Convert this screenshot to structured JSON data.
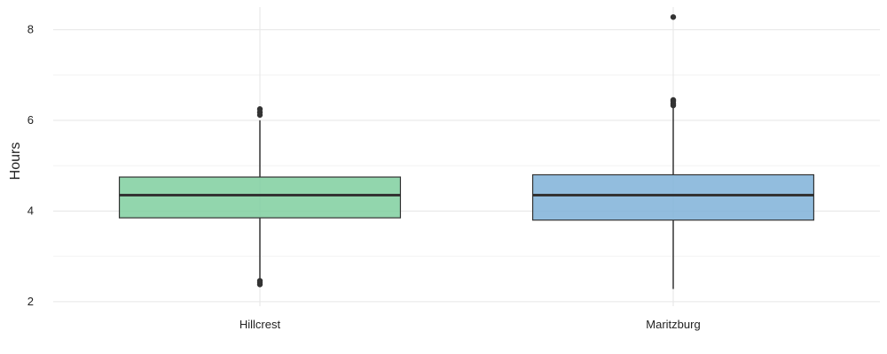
{
  "chart_data": {
    "type": "boxplot",
    "title": "",
    "xlabel": "",
    "ylabel": "Hours",
    "ylim": [
      1.9,
      8.5
    ],
    "yticks": [
      2,
      4,
      6,
      8
    ],
    "grid": true,
    "legend": "none",
    "categories": [
      "Hillcrest",
      "Maritzburg"
    ],
    "boxes": [
      {
        "name": "Hillcrest",
        "color": "#7fcf9f",
        "q1": 3.85,
        "median": 4.35,
        "q3": 4.75,
        "whisker_low": 2.5,
        "whisker_high": 6.0,
        "outliers": [
          2.38,
          2.42,
          2.46,
          6.12,
          6.18,
          6.25
        ]
      },
      {
        "name": "Maritzburg",
        "color": "#7fb2d8",
        "q1": 3.8,
        "median": 4.35,
        "q3": 4.8,
        "whisker_low": 2.28,
        "whisker_high": 6.3,
        "outliers": [
          6.33,
          6.37,
          6.42,
          6.45,
          8.28
        ]
      }
    ]
  }
}
